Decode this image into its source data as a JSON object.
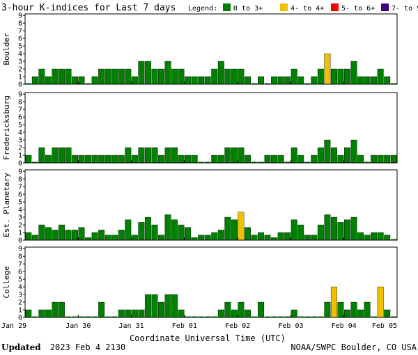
{
  "chart_data": {
    "type": "bar",
    "title": "3-hour K-indices for Last 7 days",
    "legend": {
      "label": "Legend:",
      "placement": "top-right",
      "items": [
        {
          "text": "0 to 3+",
          "color": "#008000"
        },
        {
          "text": "4- to 4+",
          "color": "#f0c000"
        },
        {
          "text": "5- to 6+",
          "color": "#ff0000"
        },
        {
          "text": "7- to 9",
          "color": "#400080"
        }
      ]
    },
    "xlabel": "Coordinate Universal Time (UTC)",
    "x_tick_labels": [
      "Jan 29",
      "Jan 30",
      "Jan 31",
      "Feb 01",
      "Feb 02",
      "Feb 03",
      "Feb 04",
      "Feb 05"
    ],
    "y_tick_labels": [
      "0",
      "1",
      "2",
      "3",
      "4",
      "5",
      "6",
      "7",
      "8",
      "9"
    ],
    "ylim": [
      0,
      9
    ],
    "grid": false,
    "intervals_per_day": 8,
    "panels": [
      {
        "name": "Boulder",
        "values": [
          0,
          1,
          2,
          1,
          2,
          2,
          2,
          1,
          1,
          0,
          1,
          2,
          2,
          2,
          2,
          2,
          1,
          3,
          3,
          2,
          2,
          3,
          2,
          2,
          1,
          1,
          1,
          1,
          2,
          3,
          2,
          2,
          2,
          1,
          0,
          1,
          0,
          1,
          1,
          1,
          2,
          1,
          0,
          1,
          2,
          4,
          2,
          2,
          2,
          3,
          1,
          1,
          1,
          2,
          1,
          0
        ]
      },
      {
        "name": "Fredericksburg",
        "values": [
          1,
          0,
          2,
          1,
          2,
          2,
          2,
          1,
          1,
          1,
          1,
          1,
          1,
          1,
          1,
          2,
          1,
          2,
          2,
          2,
          1,
          2,
          2,
          1,
          1,
          1,
          0,
          0,
          1,
          1,
          2,
          2,
          2,
          1,
          0,
          0,
          1,
          1,
          1,
          0,
          2,
          1,
          0,
          1,
          2,
          3,
          2,
          1,
          2,
          3,
          1,
          0,
          1,
          1,
          1,
          1,
          0,
          0
        ]
      },
      {
        "name": "Est. Planetary",
        "values": [
          1,
          0.67,
          2,
          1.67,
          1.33,
          2,
          1.33,
          1.33,
          1.67,
          0.33,
          1,
          1.33,
          0.67,
          0.67,
          1.33,
          2.67,
          0.67,
          2.33,
          3,
          2,
          0.67,
          3.33,
          2.67,
          2,
          1.67,
          0.33,
          0.67,
          0.67,
          1,
          1.33,
          3,
          2.67,
          3.67,
          1.67,
          0.67,
          1,
          0.67,
          0.33,
          1,
          1,
          2.67,
          2,
          0.67,
          0.67,
          2,
          3.33,
          3,
          2.33,
          2.67,
          3,
          1,
          0.67,
          1,
          1,
          0.67,
          0
        ]
      },
      {
        "name": "College",
        "values": [
          1,
          0,
          1,
          1,
          2,
          2,
          0,
          0,
          0,
          0,
          0,
          2,
          0,
          0,
          1,
          1,
          1,
          1,
          3,
          3,
          2,
          3,
          3,
          1,
          0,
          0,
          0,
          0,
          0,
          1,
          2,
          1,
          2,
          1,
          0,
          2,
          0,
          0,
          0,
          0,
          1,
          0,
          0,
          0,
          0,
          2,
          4,
          2,
          1,
          2,
          1,
          2,
          0,
          4,
          1,
          0,
          0
        ]
      }
    ],
    "footer_left_bold": "Updated",
    "footer_left": "2023 Feb  4 2130",
    "footer_right": "NOAA/SWPC Boulder, CO USA"
  }
}
